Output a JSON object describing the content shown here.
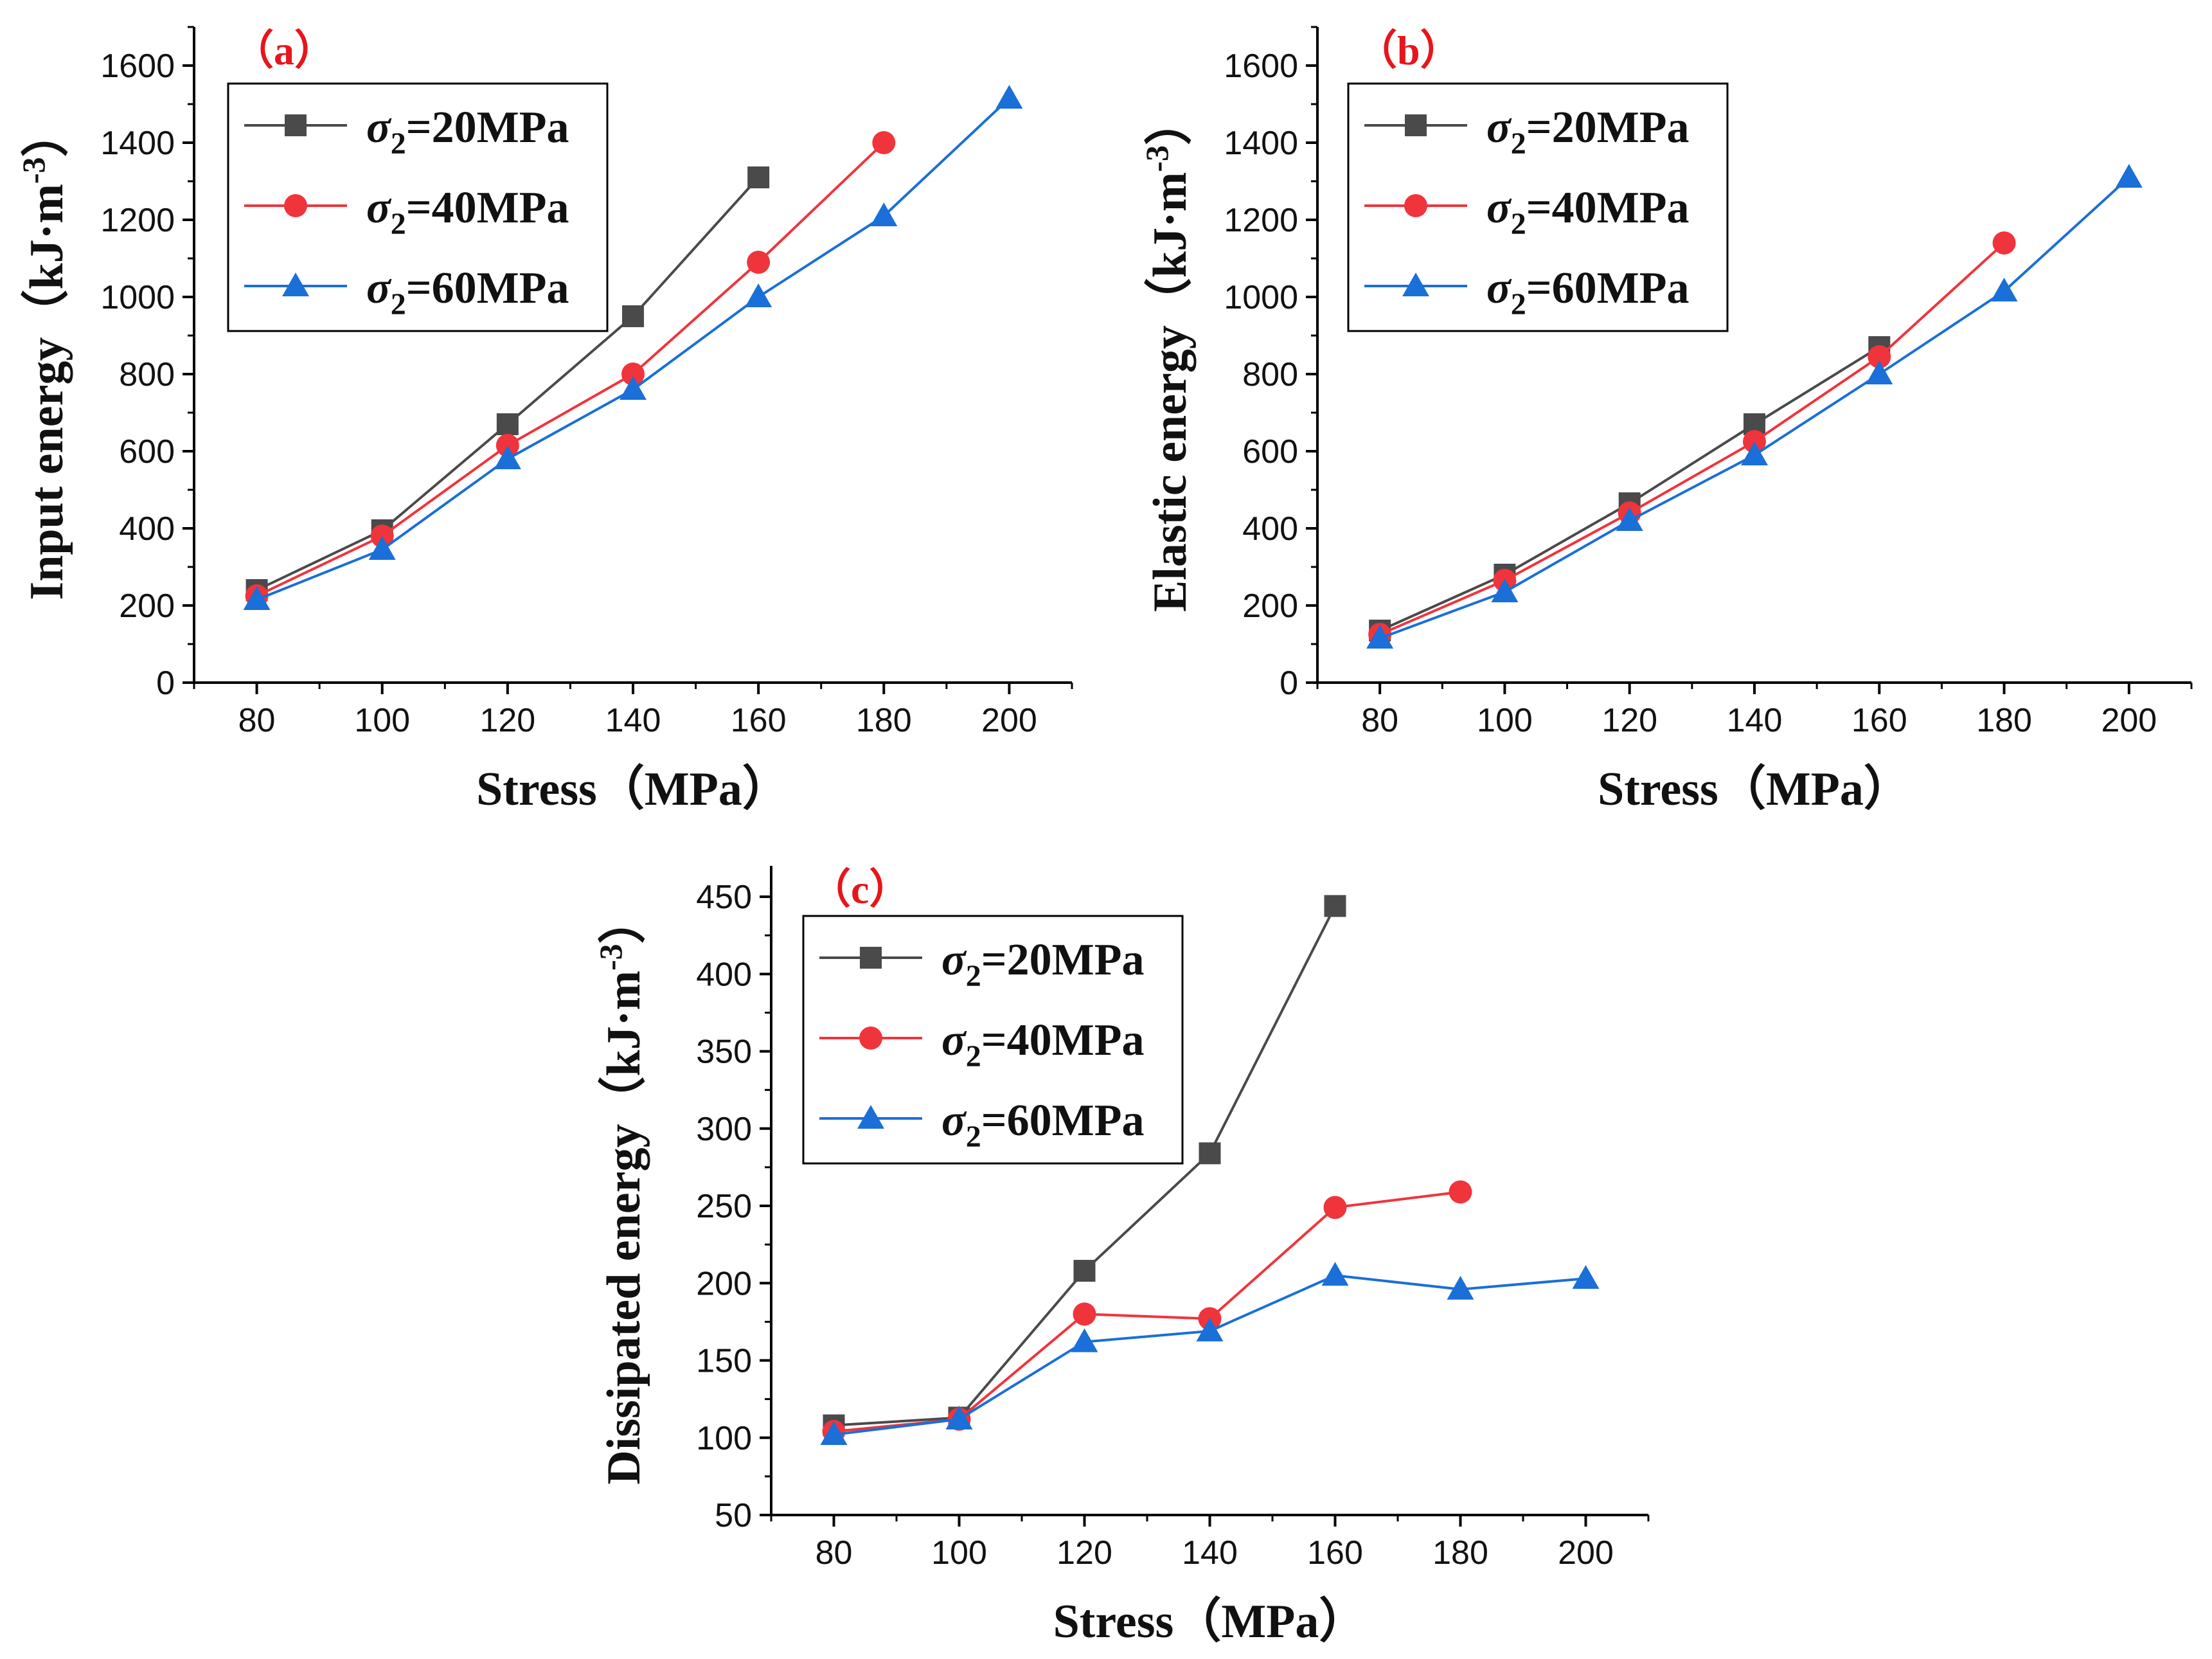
{
  "chart_data": [
    {
      "type": "line",
      "panel_label": "（a）",
      "title": "",
      "xlabel": "Stress（MPa）",
      "ylabel": "Input energy（kJ·m",
      "ylabel_sup": "-3",
      "ylabel_close": "）",
      "xlim": [
        70,
        210
      ],
      "ylim": [
        0,
        1700
      ],
      "xticks": [
        80,
        100,
        120,
        140,
        160,
        180,
        200
      ],
      "yticks": [
        0,
        200,
        400,
        600,
        800,
        1000,
        1200,
        1400,
        1600
      ],
      "legend_position": "top-left",
      "series": [
        {
          "name": "σ2=20MPa",
          "sigma": "σ",
          "sub": "2",
          "rest": "=20MPa",
          "color": "#4a4a4a",
          "marker": "square",
          "x": [
            80,
            100,
            120,
            140,
            160
          ],
          "y": [
            240,
            395,
            670,
            950,
            1310
          ]
        },
        {
          "name": "σ2=40MPa",
          "sigma": "σ",
          "sub": "2",
          "rest": "=40MPa",
          "color": "#f0343c",
          "marker": "circle",
          "x": [
            80,
            100,
            120,
            140,
            160,
            180
          ],
          "y": [
            225,
            380,
            615,
            800,
            1090,
            1400
          ]
        },
        {
          "name": "σ2=60MPa",
          "sigma": "σ",
          "sub": "2",
          "rest": "=60MPa",
          "color": "#1a6fd8",
          "marker": "triangle",
          "x": [
            80,
            100,
            120,
            140,
            160,
            180,
            200
          ],
          "y": [
            215,
            345,
            580,
            760,
            1000,
            1210,
            1515
          ]
        }
      ]
    },
    {
      "type": "line",
      "panel_label": "（b）",
      "title": "",
      "xlabel": "Stress（MPa）",
      "ylabel": "Elastic energy（kJ·m",
      "ylabel_sup": "-3",
      "ylabel_close": "）",
      "xlim": [
        70,
        210
      ],
      "ylim": [
        0,
        1700
      ],
      "xticks": [
        80,
        100,
        120,
        140,
        160,
        180,
        200
      ],
      "yticks": [
        0,
        200,
        400,
        600,
        800,
        1000,
        1200,
        1400,
        1600
      ],
      "legend_position": "top-left",
      "series": [
        {
          "name": "σ2=20MPa",
          "sigma": "σ",
          "sub": "2",
          "rest": "=20MPa",
          "color": "#4a4a4a",
          "marker": "square",
          "x": [
            80,
            100,
            120,
            140,
            160
          ],
          "y": [
            135,
            280,
            465,
            670,
            870
          ]
        },
        {
          "name": "σ2=40MPa",
          "sigma": "σ",
          "sub": "2",
          "rest": "=40MPa",
          "color": "#f0343c",
          "marker": "circle",
          "x": [
            80,
            100,
            120,
            140,
            160,
            180
          ],
          "y": [
            125,
            265,
            440,
            625,
            845,
            1140
          ]
        },
        {
          "name": "σ2=60MPa",
          "sigma": "σ",
          "sub": "2",
          "rest": "=60MPa",
          "color": "#1a6fd8",
          "marker": "triangle",
          "x": [
            80,
            100,
            120,
            140,
            160,
            180,
            200
          ],
          "y": [
            115,
            235,
            420,
            590,
            800,
            1015,
            1310
          ]
        }
      ]
    },
    {
      "type": "line",
      "panel_label": "（c）",
      "title": "",
      "xlabel": "Stress（MPa）",
      "ylabel": "Dissipated energy（kJ·m",
      "ylabel_sup": "-3",
      "ylabel_close": "）",
      "xlim": [
        70,
        210
      ],
      "ylim": [
        50,
        470
      ],
      "xticks": [
        80,
        100,
        120,
        140,
        160,
        180,
        200
      ],
      "yticks": [
        50,
        100,
        150,
        200,
        250,
        300,
        350,
        400,
        450
      ],
      "legend_position": "top-left",
      "series": [
        {
          "name": "σ2=20MPa",
          "sigma": "σ",
          "sub": "2",
          "rest": "=20MPa",
          "color": "#4a4a4a",
          "marker": "square",
          "x": [
            80,
            100,
            120,
            140,
            160
          ],
          "y": [
            108,
            113,
            208,
            284,
            444
          ]
        },
        {
          "name": "σ2=40MPa",
          "sigma": "σ",
          "sub": "2",
          "rest": "=40MPa",
          "color": "#f0343c",
          "marker": "circle",
          "x": [
            80,
            100,
            120,
            140,
            160,
            180
          ],
          "y": [
            104,
            112,
            180,
            177,
            249,
            259
          ]
        },
        {
          "name": "σ2=60MPa",
          "sigma": "σ",
          "sub": "2",
          "rest": "=60MPa",
          "color": "#1a6fd8",
          "marker": "triangle",
          "x": [
            80,
            100,
            120,
            140,
            160,
            180,
            200
          ],
          "y": [
            102,
            112,
            162,
            169,
            205,
            196,
            203
          ]
        }
      ]
    }
  ]
}
